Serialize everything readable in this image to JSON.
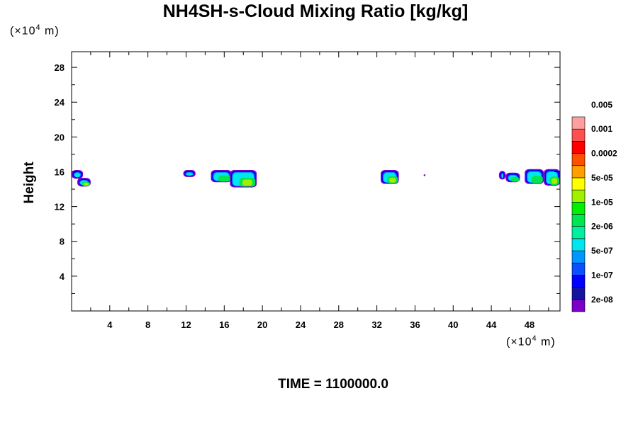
{
  "title": "NH4SH-s-Cloud Mixing Ratio [kg/kg]",
  "y_unit": {
    "prefix": "(×10",
    "exp": "4",
    "suffix": " m)"
  },
  "x_unit": {
    "prefix": "(×10",
    "exp": "4",
    "suffix": " m)"
  },
  "time_label": "TIME = 1100000.0",
  "chart_data": {
    "type": "heatmap",
    "title": "NH4SH-s-Cloud Mixing Ratio [kg/kg]",
    "xlabel": "",
    "ylabel": "Height",
    "x_unit_scale": "x10^4 m",
    "y_unit_scale": "x10^4 m",
    "xlim": [
      0,
      51.2
    ],
    "ylim": [
      0,
      29.8
    ],
    "x_ticks": [
      4,
      8,
      12,
      16,
      20,
      24,
      28,
      32,
      36,
      40,
      44,
      48
    ],
    "y_ticks": [
      4,
      8,
      12,
      16,
      20,
      24,
      28
    ],
    "time": "1100000.0",
    "colorbar": {
      "colors": [
        "#7a00c8",
        "#1414a0",
        "#0000ff",
        "#0a50ff",
        "#0096ff",
        "#00e6f0",
        "#00f0a0",
        "#00e650",
        "#00f000",
        "#a0f000",
        "#ffff00",
        "#ffa000",
        "#ff5000",
        "#ff0000",
        "#ff5050",
        "#ffa0a0"
      ],
      "labels": [
        "2e-08",
        "1e-07",
        "5e-07",
        "2e-06",
        "1e-05",
        "5e-05",
        "0.0002",
        "0.001",
        "0.005"
      ]
    },
    "clouds": [
      {
        "x0": 0.0,
        "x1": 1.2,
        "ytop": 16.2,
        "ybot": 15.2,
        "intensity": 0.4
      },
      {
        "x0": 0.6,
        "x1": 2.0,
        "ytop": 15.3,
        "ybot": 14.3,
        "intensity": 0.9
      },
      {
        "x0": 11.7,
        "x1": 13.0,
        "ytop": 16.2,
        "ybot": 15.4,
        "intensity": 0.2
      },
      {
        "x0": 14.6,
        "x1": 16.8,
        "ytop": 16.2,
        "ybot": 14.8,
        "intensity": 0.6
      },
      {
        "x0": 16.6,
        "x1": 19.4,
        "ytop": 16.2,
        "ybot": 14.2,
        "intensity": 0.8
      },
      {
        "x0": 32.4,
        "x1": 34.3,
        "ytop": 16.2,
        "ybot": 14.6,
        "intensity": 0.7
      },
      {
        "x0": 36.9,
        "x1": 37.1,
        "ytop": 15.7,
        "ybot": 15.5,
        "intensity": 0.0
      },
      {
        "x0": 44.8,
        "x1": 45.5,
        "ytop": 16.1,
        "ybot": 15.1,
        "intensity": 0.3
      },
      {
        "x0": 45.5,
        "x1": 47.0,
        "ytop": 15.9,
        "ybot": 14.8,
        "intensity": 0.5
      },
      {
        "x0": 47.5,
        "x1": 49.5,
        "ytop": 16.3,
        "ybot": 14.6,
        "intensity": 0.6
      },
      {
        "x0": 49.5,
        "x1": 51.2,
        "ytop": 16.3,
        "ybot": 14.4,
        "intensity": 0.7
      }
    ]
  }
}
